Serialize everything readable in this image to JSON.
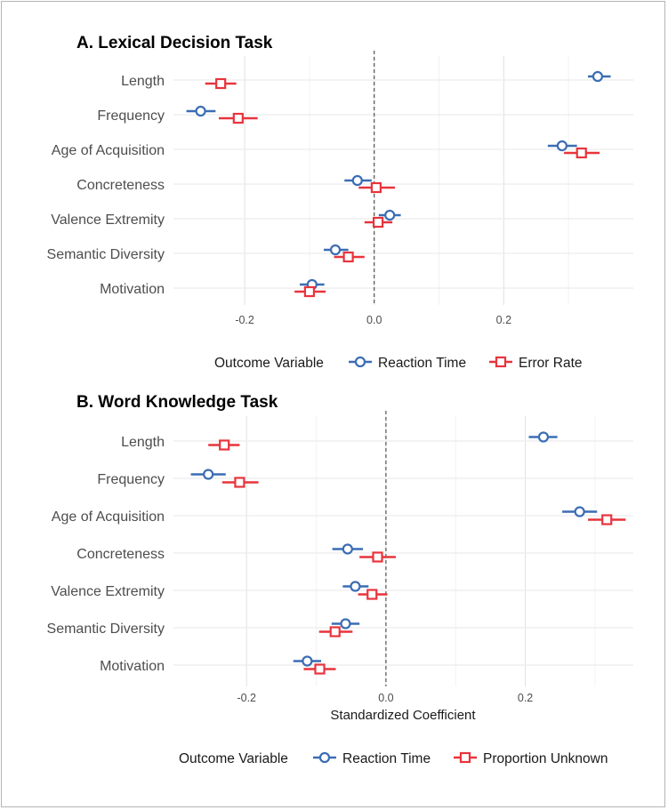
{
  "chart_data": [
    {
      "type": "forest",
      "title": "A. Lexical Decision Task",
      "xlabel": "",
      "ylabel": "",
      "xlim": [
        -0.31,
        0.4
      ],
      "xticks": [
        "-0.2",
        "0.0",
        "0.2"
      ],
      "xtick_values": [
        -0.2,
        0.0,
        0.2
      ],
      "categories": [
        "Length",
        "Frequency",
        "Age of Acquisition",
        "Concreteness",
        "Valence Extremity",
        "Semantic Diversity",
        "Motivation"
      ],
      "legend_title": "Outcome Variable",
      "series": [
        {
          "name": "Reaction Time",
          "color": "#3b6db3",
          "marker": "circle",
          "estimates": [
            0.345,
            -0.268,
            0.29,
            -0.026,
            0.024,
            -0.06,
            -0.096
          ],
          "ci_low": [
            0.33,
            -0.29,
            0.268,
            -0.046,
            0.007,
            -0.078,
            -0.115
          ],
          "ci_high": [
            0.365,
            -0.245,
            0.313,
            -0.004,
            0.041,
            -0.04,
            -0.077
          ]
        },
        {
          "name": "Error Rate",
          "color": "#e8343c",
          "marker": "square",
          "estimates": [
            -0.237,
            -0.21,
            0.32,
            0.003,
            0.006,
            -0.04,
            -0.1
          ],
          "ci_low": [
            -0.261,
            -0.24,
            0.293,
            -0.024,
            -0.015,
            -0.062,
            -0.123
          ],
          "ci_high": [
            -0.213,
            -0.18,
            0.348,
            0.032,
            0.028,
            -0.015,
            -0.075
          ]
        }
      ]
    },
    {
      "type": "forest",
      "title": "B. Word Knowledge Task",
      "xlabel": "Standardized Coefficient",
      "ylabel": "",
      "xlim": [
        -0.305,
        0.355
      ],
      "xticks": [
        "-0.2",
        "0.0",
        "0.2"
      ],
      "xtick_values": [
        -0.2,
        0.0,
        0.2
      ],
      "categories": [
        "Length",
        "Frequency",
        "Age of Acquisition",
        "Concreteness",
        "Valence Extremity",
        "Semantic Diversity",
        "Motivation"
      ],
      "legend_title": "Outcome Variable",
      "series": [
        {
          "name": "Reaction Time",
          "color": "#3b6db3",
          "marker": "circle",
          "estimates": [
            0.226,
            -0.255,
            0.278,
            -0.055,
            -0.044,
            -0.058,
            -0.113
          ],
          "ci_low": [
            0.205,
            -0.28,
            0.253,
            -0.077,
            -0.062,
            -0.078,
            -0.133
          ],
          "ci_high": [
            0.246,
            -0.23,
            0.303,
            -0.033,
            -0.025,
            -0.038,
            -0.093
          ]
        },
        {
          "name": "Proportion Unknown",
          "color": "#e8343c",
          "marker": "square",
          "estimates": [
            -0.232,
            -0.21,
            0.317,
            -0.012,
            -0.02,
            -0.073,
            -0.095
          ],
          "ci_low": [
            -0.255,
            -0.235,
            0.29,
            -0.038,
            -0.04,
            -0.096,
            -0.118
          ],
          "ci_high": [
            -0.21,
            -0.183,
            0.344,
            0.014,
            0.002,
            -0.048,
            -0.072
          ]
        }
      ]
    }
  ]
}
